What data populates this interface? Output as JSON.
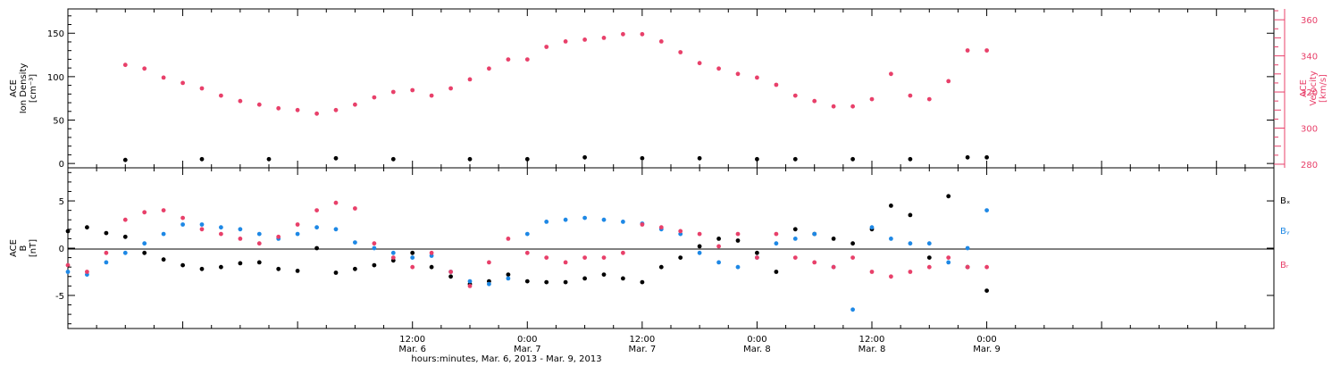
{
  "colors": {
    "axis": "#000000",
    "density": "#000000",
    "velocity": "#e8406a",
    "bx": "#000000",
    "by": "#1e88e5",
    "bz": "#e8406a"
  },
  "xaxis": {
    "title": "hours:minutes, Mar.  6, 2013 - Mar.  9, 2013",
    "range_hours": [
      -36,
      90
    ],
    "ticks": [
      {
        "h": 0,
        "time": "12:00",
        "date": "Mar. 6"
      },
      {
        "h": 12,
        "time": "0:00",
        "date": "Mar. 7"
      },
      {
        "h": 24,
        "time": "12:00",
        "date": "Mar. 7"
      },
      {
        "h": 36,
        "time": "0:00",
        "date": "Mar. 8"
      },
      {
        "h": 48,
        "time": "12:00",
        "date": "Mar. 8"
      },
      {
        "h": 60,
        "time": "0:00",
        "date": "Mar. 9"
      }
    ]
  },
  "chart_data": [
    {
      "type": "scatter",
      "panel": "top",
      "ylabel_left": [
        "ACE",
        "Ion Density",
        "[cm⁻³]"
      ],
      "ylabel_right": [
        "ACE",
        "Velocity",
        "[km/s]"
      ],
      "ylim_left": [
        -5,
        178
      ],
      "yticks_left": [
        0,
        50,
        100,
        150
      ],
      "ylim_right": [
        278,
        366
      ],
      "yticks_right": [
        280,
        300,
        320,
        340,
        360
      ],
      "series": [
        {
          "axis": "left",
          "x": [
            -30,
            -22,
            -15,
            -8,
            -2,
            6,
            12,
            18,
            24,
            30,
            36,
            40,
            46,
            52,
            58,
            60
          ],
          "y": [
            4,
            5,
            5,
            6,
            5,
            5,
            5,
            7,
            6,
            6,
            5,
            5,
            5,
            5,
            7,
            7
          ]
        },
        {
          "axis": "right",
          "x": [
            -30,
            -28,
            -26,
            -24,
            -22,
            -20,
            -18,
            -16,
            -14,
            -12,
            -10,
            -8,
            -6,
            -4,
            -2,
            0,
            2,
            4,
            6,
            8,
            10,
            12,
            14,
            16,
            18,
            20,
            22,
            24,
            26,
            28,
            30,
            32,
            34,
            36,
            38,
            40,
            42,
            44,
            46,
            48,
            50,
            52,
            54,
            56,
            58,
            60
          ],
          "y": [
            335,
            333,
            328,
            325,
            322,
            318,
            315,
            313,
            311,
            310,
            308,
            310,
            313,
            317,
            320,
            321,
            318,
            322,
            327,
            333,
            338,
            338,
            345,
            348,
            349,
            350,
            352,
            352,
            348,
            342,
            336,
            333,
            330,
            328,
            324,
            318,
            315,
            312,
            312,
            316,
            330,
            318,
            316,
            326,
            343,
            343
          ]
        }
      ]
    },
    {
      "type": "scatter",
      "panel": "bottom",
      "ylabel_left": [
        "ACE",
        "B",
        "[nT]"
      ],
      "ylim": [
        -8.5,
        8.5
      ],
      "yticks": [
        -5,
        0,
        5
      ],
      "legend": [
        "Bₓ",
        "Bᵧ",
        "Bᵣ"
      ],
      "series": [
        {
          "name": "Bₓ",
          "x": [
            -36,
            -34,
            -32,
            -30,
            -28,
            -26,
            -24,
            -22,
            -20,
            -18,
            -16,
            -14,
            -12,
            -10,
            -8,
            -6,
            -4,
            -2,
            0,
            2,
            4,
            6,
            8,
            10,
            12,
            14,
            16,
            18,
            20,
            22,
            24,
            26,
            28,
            30,
            32,
            34,
            36,
            38,
            40,
            42,
            44,
            46,
            48,
            50,
            52,
            54,
            56,
            58,
            60
          ],
          "y": [
            1.8,
            2.2,
            1.6,
            1.2,
            -0.5,
            -1.2,
            -1.8,
            -2.2,
            -2.0,
            -1.6,
            -1.5,
            -2.2,
            -2.4,
            0.0,
            -2.6,
            -2.2,
            -1.8,
            -1.3,
            -0.5,
            -2.0,
            -3.0,
            -3.8,
            -3.5,
            -2.8,
            -3.5,
            -3.6,
            -3.6,
            -3.2,
            -2.8,
            -3.2,
            -3.6,
            -2.0,
            -1.0,
            0.2,
            1.0,
            0.8,
            -0.5,
            -2.5,
            2.0,
            1.5,
            1.0,
            0.5,
            2.0,
            4.5,
            3.5,
            -1.0,
            5.5,
            -2.0,
            -4.5
          ]
        },
        {
          "name": "Bᵧ",
          "x": [
            -36,
            -34,
            -32,
            -30,
            -28,
            -26,
            -24,
            -22,
            -20,
            -18,
            -16,
            -14,
            -12,
            -10,
            -8,
            -6,
            -4,
            -2,
            0,
            2,
            4,
            6,
            8,
            10,
            12,
            14,
            16,
            18,
            20,
            22,
            24,
            26,
            28,
            30,
            32,
            34,
            36,
            38,
            40,
            42,
            44,
            46,
            48,
            50,
            52,
            54,
            56,
            58,
            60
          ],
          "y": [
            -2.5,
            -2.8,
            -1.5,
            -0.5,
            0.5,
            1.5,
            2.5,
            2.5,
            2.2,
            2.0,
            1.5,
            1.0,
            1.5,
            2.2,
            2.0,
            0.6,
            0.0,
            -0.5,
            -1.0,
            -0.8,
            -2.5,
            -3.5,
            -3.8,
            -3.2,
            1.5,
            2.8,
            3.0,
            3.2,
            3.0,
            2.8,
            2.6,
            2.0,
            1.5,
            -0.5,
            -1.5,
            -2.0,
            -1.0,
            0.5,
            1.0,
            1.5,
            -2.0,
            -6.5,
            2.2,
            1.0,
            0.5,
            0.5,
            -1.5,
            0.0,
            4.0
          ]
        },
        {
          "name": "Bᵣ",
          "x": [
            -36,
            -34,
            -32,
            -30,
            -28,
            -26,
            -24,
            -22,
            -20,
            -18,
            -16,
            -14,
            -12,
            -10,
            -8,
            -6,
            -4,
            -2,
            0,
            2,
            4,
            6,
            8,
            10,
            12,
            14,
            16,
            18,
            20,
            22,
            24,
            26,
            28,
            30,
            32,
            34,
            36,
            38,
            40,
            42,
            44,
            46,
            48,
            50,
            52,
            54,
            56,
            58,
            60
          ],
          "y": [
            -1.8,
            -2.5,
            -0.5,
            3.0,
            3.8,
            4.0,
            3.2,
            2.0,
            1.5,
            1.0,
            0.5,
            1.2,
            2.5,
            4.0,
            4.8,
            4.2,
            0.5,
            -1.0,
            -2.0,
            -0.5,
            -2.5,
            -4.0,
            -1.5,
            1.0,
            -0.5,
            -1.0,
            -1.5,
            -1.0,
            -1.0,
            -0.5,
            2.5,
            2.2,
            1.8,
            1.5,
            0.2,
            1.5,
            -1.0,
            1.5,
            -1.0,
            -1.5,
            -2.0,
            -1.0,
            -2.5,
            -3.0,
            -2.5,
            -2.0,
            -1.0,
            -2.0,
            -2.0
          ]
        }
      ]
    }
  ]
}
